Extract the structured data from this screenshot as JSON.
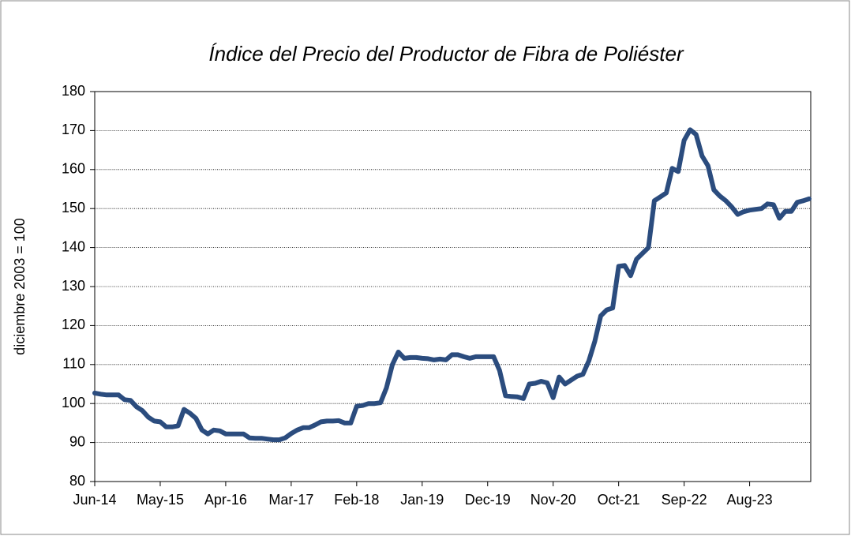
{
  "chart_data": {
    "type": "line",
    "title": "Índice del Precio del Productor de Fibra  de Poliéster",
    "y_label": "diciembre 2003 = 100",
    "categories": [
      "Jun-14",
      null,
      null,
      null,
      null,
      null,
      null,
      null,
      null,
      null,
      null,
      "May-15",
      null,
      null,
      null,
      null,
      null,
      null,
      null,
      null,
      null,
      null,
      "Apr-16",
      null,
      null,
      null,
      null,
      null,
      null,
      null,
      null,
      null,
      null,
      "Mar-17",
      null,
      null,
      null,
      null,
      null,
      null,
      null,
      null,
      null,
      null,
      "Feb-18",
      null,
      null,
      null,
      null,
      null,
      null,
      null,
      null,
      null,
      null,
      "Jan-19",
      null,
      null,
      null,
      null,
      null,
      null,
      null,
      null,
      null,
      null,
      "Dec-19",
      null,
      null,
      null,
      null,
      null,
      null,
      null,
      null,
      null,
      null,
      "Nov-20",
      null,
      null,
      null,
      null,
      null,
      null,
      null,
      null,
      null,
      null,
      "Oct-21",
      null,
      null,
      null,
      null,
      null,
      null,
      null,
      null,
      null,
      null,
      "Sep-22",
      null,
      null,
      null,
      null,
      null,
      null,
      null,
      null,
      null,
      null,
      "Aug-23",
      null,
      null,
      null,
      null,
      null,
      null,
      null,
      null,
      null,
      null
    ],
    "series": [
      {
        "name": "Índice",
        "color": "#2b4c7e",
        "values": [
          102.7,
          102.4,
          102.2,
          102.2,
          102.2,
          101,
          100.8,
          99.2,
          98.2,
          96.5,
          95.5,
          95.3,
          94,
          94,
          94.3,
          98.5,
          97.5,
          96.2,
          93.2,
          92.2,
          93.2,
          93,
          92.2,
          92.2,
          92.2,
          92.2,
          91.2,
          91.1,
          91.1,
          90.9,
          90.7,
          90.7,
          91.2,
          92.3,
          93.2,
          93.8,
          93.8,
          94.5,
          95.3,
          95.5,
          95.5,
          95.6,
          95,
          95,
          99.3,
          99.5,
          100,
          100,
          100.2,
          104,
          110,
          113.2,
          111.6,
          111.8,
          111.8,
          111.6,
          111.5,
          111.2,
          111.4,
          111.2,
          112.5,
          112.5,
          112,
          111.6,
          112,
          112,
          112,
          112,
          108.5,
          102,
          101.8,
          101.7,
          101.3,
          105,
          105.2,
          105.7,
          105.3,
          101.5,
          106.8,
          105,
          106,
          107,
          107.5,
          111,
          116,
          122.5,
          124,
          124.5,
          135.2,
          135.4,
          132.8,
          137,
          138.5,
          140,
          152,
          153,
          154,
          160.3,
          159.5,
          167.5,
          170.2,
          169,
          163.5,
          161,
          154.8,
          153.2,
          152,
          150.4,
          148.5,
          149.2,
          149.6,
          149.8,
          150,
          151.2,
          151,
          147.5,
          149.3,
          149.3,
          151.6,
          152,
          152.5
        ]
      }
    ],
    "ylim": [
      80,
      180
    ],
    "yticks": [
      80,
      90,
      100,
      110,
      120,
      130,
      140,
      150,
      160,
      170,
      180
    ],
    "grid": true
  }
}
